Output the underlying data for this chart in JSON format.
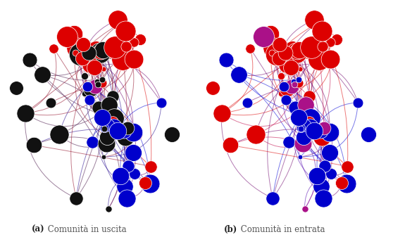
{
  "label_a_bold": "(a)",
  "label_a_text": " Comunità in uscita",
  "label_b_bold": "(b)",
  "label_b_text": " Comunità in entrata",
  "background_color": "#ffffff",
  "fig_width": 5.58,
  "fig_height": 3.47,
  "node_color_red": "#dd0000",
  "node_color_blue": "#0000cc",
  "node_color_black": "#111111",
  "node_color_purple": "#aa1188",
  "edge_alpha": 0.55,
  "edge_lw": 0.7
}
